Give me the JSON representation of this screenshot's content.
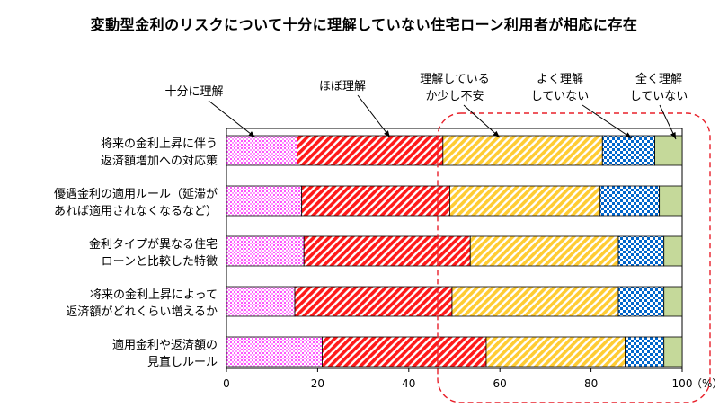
{
  "chart_data": {
    "type": "bar",
    "orientation": "horizontal",
    "stacked": true,
    "title": "変動型金利のリスクについて十分に理解していない住宅ローン利用者が相応に存在",
    "categories": [
      [
        "将来の金利上昇に伴う",
        "返済額増加への対応策"
      ],
      [
        "優遇金利の適用ルール（延滞が",
        "あれば適用されなくなるなど）"
      ],
      [
        "金利タイプが異なる住宅",
        "ローンと比較した特徴"
      ],
      [
        "将来の金利上昇によって",
        "返済額がどれくらい増えるか"
      ],
      [
        "適用金利や返済額の",
        "見直しルール"
      ]
    ],
    "series": [
      {
        "name": [
          "十分に理解"
        ],
        "color": "#ff66ff",
        "pattern": "dots",
        "values": [
          15.5,
          16.5,
          17.0,
          15.0,
          21.0
        ]
      },
      {
        "name": [
          "ほぼ理解"
        ],
        "color": "#ff0000",
        "pattern": "diag-red",
        "values": [
          32.0,
          32.5,
          36.5,
          34.5,
          36.0
        ]
      },
      {
        "name": [
          "理解している",
          "か少し不安"
        ],
        "color": "#ffcc33",
        "pattern": "diag-yellow",
        "values": [
          35.0,
          33.0,
          32.5,
          36.5,
          30.5
        ]
      },
      {
        "name": [
          "よく理解",
          "していない"
        ],
        "color": "#0070c0",
        "pattern": "checker",
        "values": [
          11.5,
          13.0,
          10.0,
          10.0,
          8.5
        ]
      },
      {
        "name": [
          "全く理解",
          "していない"
        ],
        "color": "#c5d99a",
        "pattern": "solid",
        "values": [
          6.0,
          5.0,
          4.0,
          4.0,
          4.0
        ]
      }
    ],
    "xlim": [
      0,
      100
    ],
    "xticks": [
      0,
      20,
      40,
      60,
      80,
      100
    ],
    "x_unit": "（%）",
    "grid": false,
    "legend": "callouts-above"
  }
}
